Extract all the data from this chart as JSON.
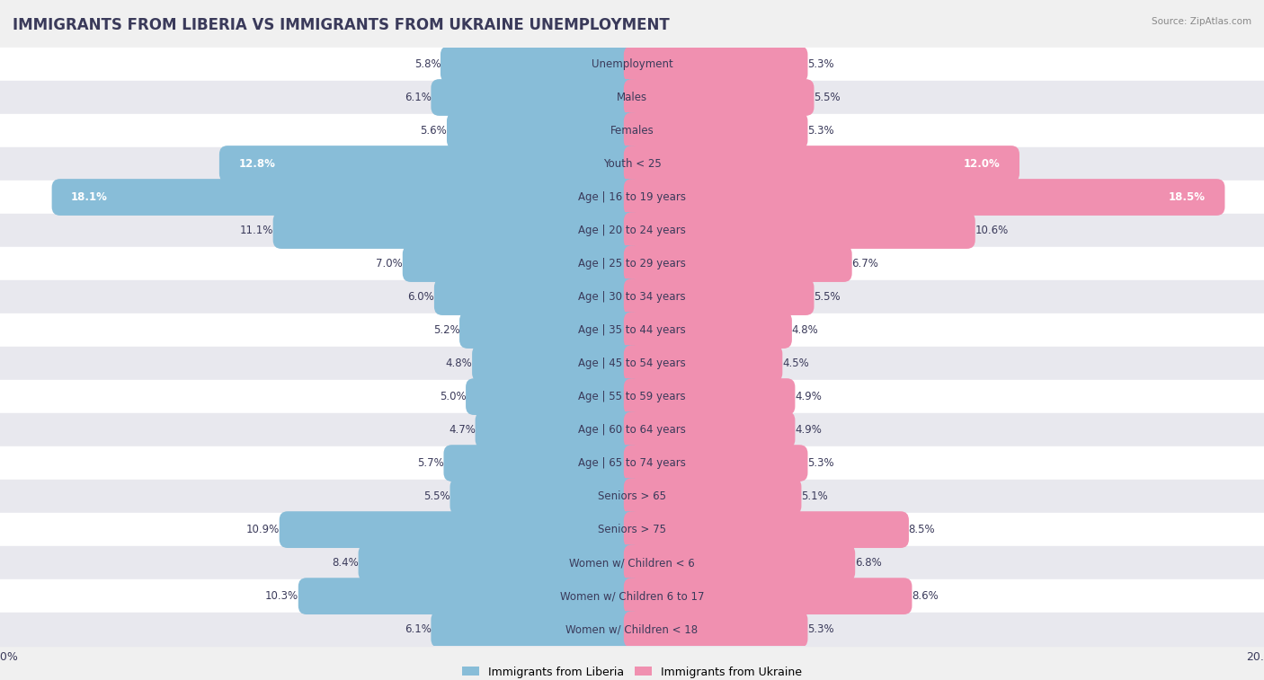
{
  "title": "IMMIGRANTS FROM LIBERIA VS IMMIGRANTS FROM UKRAINE UNEMPLOYMENT",
  "source": "Source: ZipAtlas.com",
  "categories": [
    "Unemployment",
    "Males",
    "Females",
    "Youth < 25",
    "Age | 16 to 19 years",
    "Age | 20 to 24 years",
    "Age | 25 to 29 years",
    "Age | 30 to 34 years",
    "Age | 35 to 44 years",
    "Age | 45 to 54 years",
    "Age | 55 to 59 years",
    "Age | 60 to 64 years",
    "Age | 65 to 74 years",
    "Seniors > 65",
    "Seniors > 75",
    "Women w/ Children < 6",
    "Women w/ Children 6 to 17",
    "Women w/ Children < 18"
  ],
  "liberia_values": [
    5.8,
    6.1,
    5.6,
    12.8,
    18.1,
    11.1,
    7.0,
    6.0,
    5.2,
    4.8,
    5.0,
    4.7,
    5.7,
    5.5,
    10.9,
    8.4,
    10.3,
    6.1
  ],
  "ukraine_values": [
    5.3,
    5.5,
    5.3,
    12.0,
    18.5,
    10.6,
    6.7,
    5.5,
    4.8,
    4.5,
    4.9,
    4.9,
    5.3,
    5.1,
    8.5,
    6.8,
    8.6,
    5.3
  ],
  "liberia_color": "#88bdd8",
  "ukraine_color": "#f090b0",
  "liberia_label": "Immigrants from Liberia",
  "ukraine_label": "Immigrants from Ukraine",
  "xlim": 20.0,
  "title_fontsize": 12,
  "value_fontsize": 8.5,
  "cat_fontsize": 8.5,
  "bar_height": 0.58,
  "row_bg_colors": [
    "#ffffff",
    "#e8e8ee"
  ],
  "text_color": "#3a3a5a"
}
